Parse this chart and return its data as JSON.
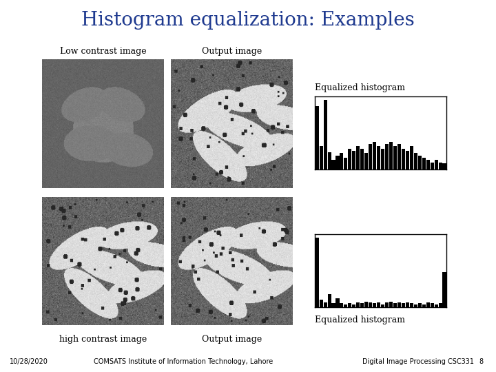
{
  "title": "Histogram equalization: Examples",
  "title_color": "#1F3A8F",
  "title_fontsize": 20,
  "teal_line_color": "#007878",
  "bg_color": "#FFFFFF",
  "label_top_left": "Low contrast image",
  "label_top_right": "Output image",
  "label_bottom_left": "high contrast image",
  "label_bottom_right": "Output image",
  "label_hist_top": "Equalized histogram",
  "label_hist_bottom": "Equalized histogram",
  "footer_left": "10/28/2020",
  "footer_center": "COMSATS Institute of Information Technology, Lahore",
  "footer_right": "Digital Image Processing CSC331",
  "footer_page": "8",
  "label_fontsize": 9,
  "footer_fontsize": 7,
  "hist1_bars": [
    55,
    20,
    60,
    15,
    8,
    12,
    14,
    10,
    18,
    16,
    20,
    18,
    14,
    22,
    24,
    20,
    18,
    22,
    24,
    20,
    22,
    18,
    16,
    20,
    14,
    12,
    10,
    8,
    6,
    8,
    6,
    5
  ],
  "hist2_bars": [
    80,
    8,
    5,
    15,
    4,
    10,
    4,
    3,
    4,
    3,
    5,
    4,
    6,
    5,
    4,
    5,
    3,
    5,
    6,
    4,
    5,
    4,
    5,
    4,
    3,
    4,
    3,
    5,
    4,
    3,
    4,
    40
  ]
}
